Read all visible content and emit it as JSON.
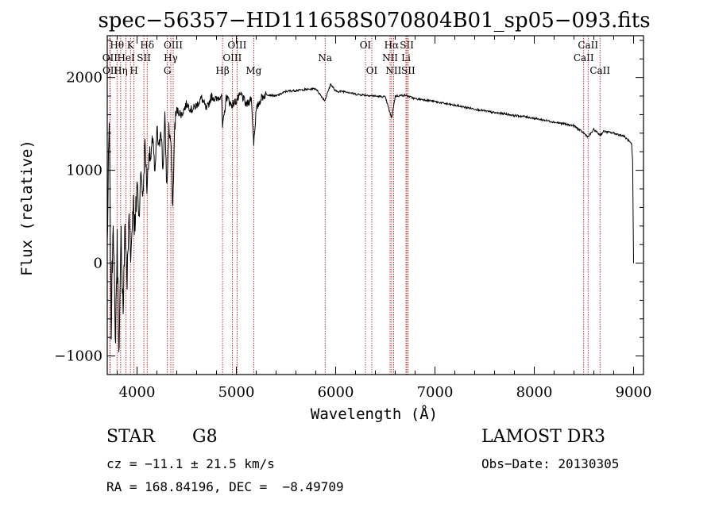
{
  "chart_data": {
    "type": "line",
    "title": "spec−56357−HD111658S070804B01_sp05−093.fits",
    "xlabel": "Wavelength (Å)",
    "ylabel": "Flux (relative)",
    "xlim": [
      3700,
      9100
    ],
    "ylim": [
      -1200,
      2450
    ],
    "xticks": [
      4000,
      5000,
      6000,
      7000,
      8000,
      9000
    ],
    "yticks": [
      -1000,
      0,
      1000,
      2000
    ],
    "ytick_labels": [
      "−1000",
      "0",
      "1000",
      "2000"
    ],
    "series": [
      {
        "name": "spectrum",
        "x": [
          3700,
          3720,
          3740,
          3760,
          3780,
          3800,
          3820,
          3840,
          3860,
          3880,
          3900,
          3920,
          3940,
          3960,
          3980,
          4000,
          4020,
          4040,
          4060,
          4080,
          4100,
          4120,
          4140,
          4160,
          4180,
          4200,
          4220,
          4240,
          4260,
          4280,
          4300,
          4320,
          4340,
          4360,
          4380,
          4400,
          4450,
          4500,
          4550,
          4600,
          4650,
          4700,
          4750,
          4800,
          4850,
          4861,
          4900,
          4950,
          5000,
          5050,
          5100,
          5150,
          5175,
          5200,
          5250,
          5300,
          5400,
          5500,
          5600,
          5700,
          5800,
          5890,
          5950,
          6000,
          6100,
          6200,
          6300,
          6400,
          6500,
          6563,
          6600,
          6700,
          6800,
          6900,
          7000,
          7100,
          7200,
          7300,
          7400,
          7500,
          7600,
          7700,
          7800,
          7900,
          8000,
          8100,
          8200,
          8300,
          8400,
          8498,
          8542,
          8600,
          8662,
          8700,
          8800,
          8900,
          8950,
          8980,
          8990,
          9000
        ],
        "values": [
          200,
          1500,
          -700,
          600,
          -900,
          200,
          -1000,
          300,
          -500,
          400,
          -200,
          500,
          100,
          700,
          300,
          900,
          500,
          1000,
          700,
          1300,
          800,
          1200,
          1100,
          1400,
          900,
          1450,
          1200,
          1500,
          1000,
          1550,
          800,
          1450,
          1300,
          600,
          1500,
          1650,
          1600,
          1720,
          1650,
          1700,
          1780,
          1650,
          1800,
          1760,
          1820,
          1450,
          1800,
          1700,
          1750,
          1820,
          1700,
          1780,
          1300,
          1650,
          1780,
          1820,
          1800,
          1850,
          1860,
          1870,
          1880,
          1750,
          1930,
          1850,
          1850,
          1820,
          1810,
          1800,
          1790,
          1560,
          1800,
          1810,
          1770,
          1760,
          1740,
          1720,
          1700,
          1680,
          1660,
          1640,
          1620,
          1610,
          1590,
          1580,
          1560,
          1540,
          1520,
          1500,
          1480,
          1400,
          1360,
          1440,
          1380,
          1420,
          1400,
          1370,
          1320,
          1280,
          1100,
          0
        ]
      }
    ],
    "lines": [
      {
        "label": "Hθ",
        "wl": 3798,
        "row": 1
      },
      {
        "label": "OII",
        "wl": 3727,
        "row": 2
      },
      {
        "label": "OII",
        "wl": 3729,
        "row": 3
      },
      {
        "label": "Hη",
        "wl": 3835,
        "row": 3
      },
      {
        "label": "HeI",
        "wl": 3889,
        "row": 2
      },
      {
        "label": "K",
        "wl": 3934,
        "row": 1
      },
      {
        "label": "H",
        "wl": 3969,
        "row": 3
      },
      {
        "label": "SII",
        "wl": 4069,
        "row": 2
      },
      {
        "label": "Hδ",
        "wl": 4102,
        "row": 1
      },
      {
        "label": "Hγ",
        "wl": 4340,
        "row": 2
      },
      {
        "label": "OIII",
        "wl": 4364,
        "row": 1
      },
      {
        "label": "G",
        "wl": 4305,
        "row": 3
      },
      {
        "label": "Hβ",
        "wl": 4861,
        "row": 3
      },
      {
        "label": "OIII",
        "wl": 4959,
        "row": 2
      },
      {
        "label": "OIII",
        "wl": 5007,
        "row": 1
      },
      {
        "label": "Mg",
        "wl": 5175,
        "row": 3
      },
      {
        "label": "Na",
        "wl": 5894,
        "row": 2
      },
      {
        "label": "OI",
        "wl": 6300,
        "row": 1
      },
      {
        "label": "OI",
        "wl": 6364,
        "row": 3
      },
      {
        "label": "NII",
        "wl": 6548,
        "row": 2
      },
      {
        "label": "Hα",
        "wl": 6563,
        "row": 1
      },
      {
        "label": "NII",
        "wl": 6583,
        "row": 3
      },
      {
        "label": "Li",
        "wl": 6708,
        "row": 2
      },
      {
        "label": "SII",
        "wl": 6717,
        "row": 1
      },
      {
        "label": "SII",
        "wl": 6731,
        "row": 3
      },
      {
        "label": "CaII",
        "wl": 8498,
        "row": 2
      },
      {
        "label": "CaII",
        "wl": 8542,
        "row": 1
      },
      {
        "label": "CaII",
        "wl": 8662,
        "row": 3
      }
    ],
    "line_color": "#b30000",
    "spectrum_color": "#000000"
  },
  "footer": {
    "object_class": "STAR",
    "subclass": "G8",
    "survey": "LAMOST DR3",
    "cz": "cz = −11.1 ± 21.5 km/s",
    "obs_date": "Obs−Date: 20130305",
    "coords": "RA = 168.84196, DEC =  −8.49709"
  }
}
